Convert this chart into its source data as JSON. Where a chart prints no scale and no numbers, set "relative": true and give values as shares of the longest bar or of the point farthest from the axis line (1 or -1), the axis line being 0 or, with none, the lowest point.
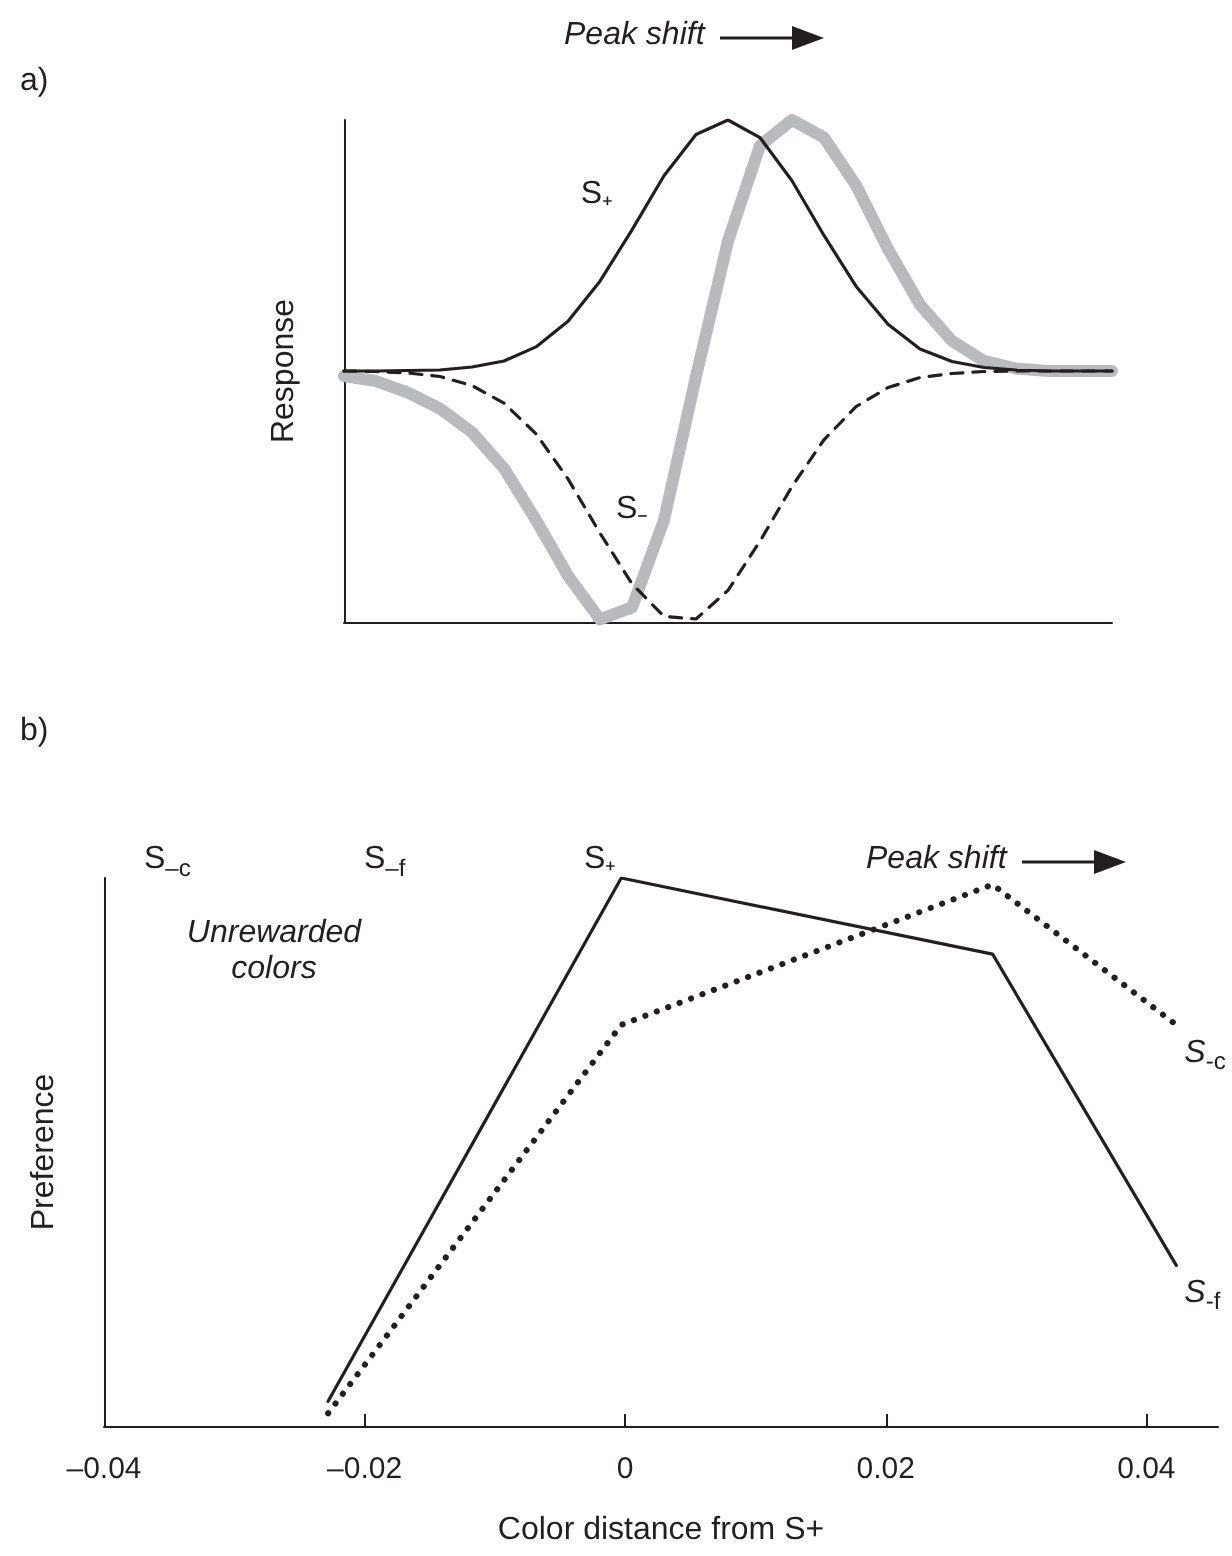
{
  "chart_data": [
    {
      "type": "line",
      "ylabel": "Response",
      "relative": true,
      "grid": false,
      "tick_labels": false,
      "annotations": [
        "Peak shift",
        "a)"
      ],
      "categories": [
        null,
        null,
        null,
        null,
        null,
        null,
        null,
        null,
        null,
        null,
        null,
        null,
        null,
        null,
        null,
        null,
        null,
        null,
        null,
        null,
        null,
        null,
        null,
        null,
        null
      ],
      "series": [
        {
          "name": "S₊",
          "color": "#231f20",
          "line_style": "solid",
          "values": [
            0.5,
            0.5,
            0.501,
            0.502,
            0.508,
            0.52,
            0.548,
            0.599,
            0.679,
            0.781,
            0.889,
            0.971,
            1.0,
            0.965,
            0.879,
            0.77,
            0.669,
            0.593,
            0.544,
            0.519,
            0.507,
            0.502,
            0.5,
            0.5,
            0.5
          ]
        },
        {
          "name": "S₋",
          "color": "#231f20",
          "line_style": "dashed",
          "values": [
            0.5,
            0.499,
            0.496,
            0.489,
            0.471,
            0.436,
            0.375,
            0.285,
            0.177,
            0.076,
            0.011,
            0.006,
            0.063,
            0.161,
            0.27,
            0.363,
            0.429,
            0.467,
            0.487,
            0.495,
            0.499,
            0.5,
            0.5,
            0.5,
            0.5
          ]
        },
        {
          "color": "#b9babd",
          "line_style": "solid",
          "values": [
            0.49,
            0.48,
            0.457,
            0.425,
            0.378,
            0.306,
            0.203,
            0.092,
            0.005,
            0.029,
            0.203,
            0.489,
            0.759,
            0.949,
            1.0,
            0.965,
            0.87,
            0.743,
            0.632,
            0.56,
            0.52,
            0.505,
            0.5,
            0.5,
            0.5
          ]
        }
      ]
    },
    {
      "type": "line",
      "ylabel": "Preference",
      "xlabel": "Color distance from S+",
      "relative": true,
      "grid": false,
      "tick_labels": "x",
      "annotations": [
        "S$_{–c}$",
        "S$_{–f}$",
        "S₊",
        "Peak shift",
        "Unrewarded colors",
        "b)"
      ],
      "xlim": [
        -0.04,
        0.0455
      ],
      "xticks": [
        {
          "value": -0.04,
          "label": "–0.04"
        },
        {
          "value": -0.02,
          "label": "–0.02"
        },
        0,
        0.02,
        0.04
      ],
      "series": [
        {
          "name": "S$_{-f}$",
          "color": "#231f20",
          "line_style": "solid",
          "x": [
            -0.0228,
            -0.0003,
            0.0282,
            0.0423
          ],
          "values": [
            0.045,
            1,
            0.861,
            0.293
          ]
        },
        {
          "name": "S$_{-c}$",
          "color": "#231f20",
          "line_style": "dotted",
          "x": [
            -0.0228,
            -0.0003,
            0.0282,
            0.0423
          ],
          "values": [
            0.023,
            0.732,
            0.988,
            0.732
          ]
        }
      ]
    }
  ]
}
